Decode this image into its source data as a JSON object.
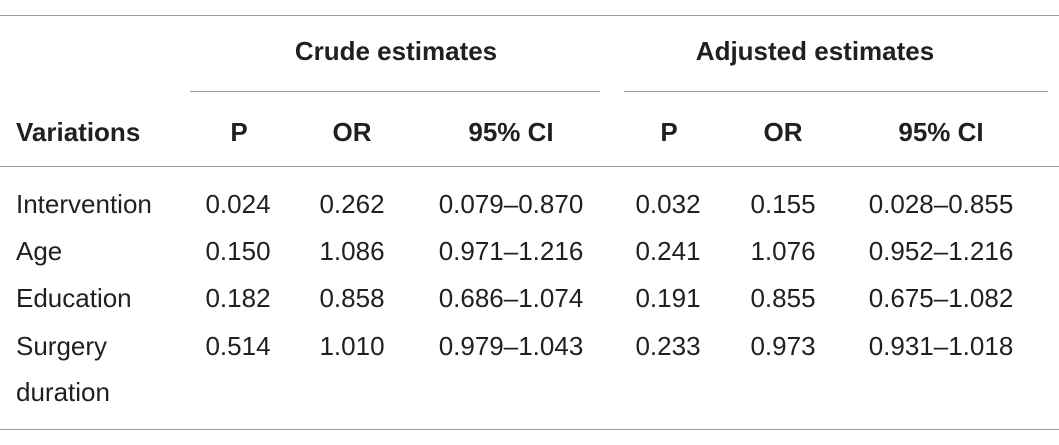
{
  "table": {
    "group_headers": {
      "crude": "Crude estimates",
      "adjusted": "Adjusted estimates"
    },
    "column_headers": [
      "Variations",
      "P",
      "OR",
      "95% CI",
      "P",
      "OR",
      "95% CI"
    ],
    "rows": [
      {
        "label": "Intervention",
        "label_cont": "",
        "cells": [
          "0.024",
          "0.262",
          "0.079–0.870",
          "0.032",
          "0.155",
          "0.028–0.855"
        ]
      },
      {
        "label": "Age",
        "label_cont": "",
        "cells": [
          "0.150",
          "1.086",
          "0.971–1.216",
          "0.241",
          "1.076",
          "0.952–1.216"
        ]
      },
      {
        "label": "Education",
        "label_cont": "",
        "cells": [
          "0.182",
          "0.858",
          "0.686–1.074",
          "0.191",
          "0.855",
          "0.675–1.082"
        ]
      },
      {
        "label": "Surgery",
        "label_cont": "duration",
        "cells": [
          "0.514",
          "1.010",
          "0.979–1.043",
          "0.233",
          "0.973",
          "0.931–1.018"
        ]
      }
    ]
  }
}
